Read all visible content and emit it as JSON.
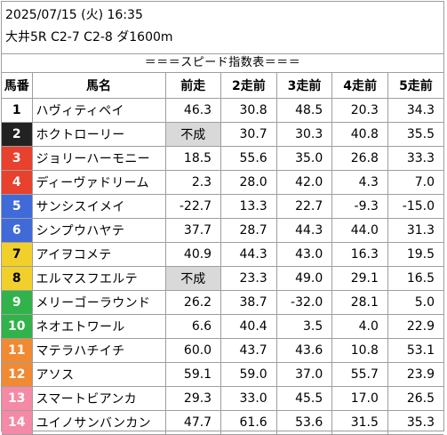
{
  "header": {
    "line1": "2025/07/15 (火) 16:35",
    "line2": "大井5R C2-7 C2-8 ダ1600m",
    "title": "＝＝＝スピード指数表＝＝＝"
  },
  "columns": {
    "num": "馬番",
    "name": "馬名",
    "r1": "前走",
    "r2": "2走前",
    "r3": "3走前",
    "r4": "4走前",
    "r5": "5走前"
  },
  "colors": {
    "frame1": "#ffffff",
    "frame2": "#222222",
    "frame3": "#e8412e",
    "frame4": "#e8412e",
    "frame5": "#3f6ad8",
    "frame6": "#3f6ad8",
    "frame7": "#f2d02b",
    "frame8": "#f2d02b",
    "frame9": "#32b24a",
    "frame10": "#32b24a",
    "frame11": "#f08a33",
    "frame12": "#f08a33",
    "frame13": "#f48aa6",
    "frame14": "#f48aa6",
    "cancelled_bg": "#d9d9d9",
    "grid": "#9e9e9e"
  },
  "rows": [
    {
      "num": "1",
      "name": "ハヴィティペイ",
      "r1": "46.3",
      "r2": "30.8",
      "r3": "48.5",
      "r4": "20.3",
      "r5": "34.3"
    },
    {
      "num": "2",
      "name": "ホクトローリー",
      "r1": "不成",
      "r2": "30.7",
      "r3": "30.3",
      "r4": "40.8",
      "r5": "35.5"
    },
    {
      "num": "3",
      "name": "ジョリーハーモニー",
      "r1": "18.5",
      "r2": "55.6",
      "r3": "35.0",
      "r4": "26.8",
      "r5": "33.3"
    },
    {
      "num": "4",
      "name": "ディーヴァドリーム",
      "r1": "2.3",
      "r2": "28.0",
      "r3": "42.0",
      "r4": "4.3",
      "r5": "7.0"
    },
    {
      "num": "5",
      "name": "サンシスイメイ",
      "r1": "-22.7",
      "r2": "13.3",
      "r3": "22.7",
      "r4": "-9.3",
      "r5": "-15.0"
    },
    {
      "num": "6",
      "name": "シンプウハヤテ",
      "r1": "37.7",
      "r2": "28.7",
      "r3": "44.3",
      "r4": "44.0",
      "r5": "31.3"
    },
    {
      "num": "7",
      "name": "アイヲコメテ",
      "r1": "40.9",
      "r2": "44.3",
      "r3": "43.0",
      "r4": "16.3",
      "r5": "19.5"
    },
    {
      "num": "8",
      "name": "エルマスフエルテ",
      "r1": "不成",
      "r2": "23.3",
      "r3": "49.0",
      "r4": "29.1",
      "r5": "16.5"
    },
    {
      "num": "9",
      "name": "メリーゴーラウンド",
      "r1": "26.2",
      "r2": "38.7",
      "r3": "-32.0",
      "r4": "28.1",
      "r5": "5.0"
    },
    {
      "num": "10",
      "name": "ネオエトワール",
      "r1": "6.6",
      "r2": "40.4",
      "r3": "3.5",
      "r4": "4.0",
      "r5": "22.9"
    },
    {
      "num": "11",
      "name": "マテラハチイチ",
      "r1": "60.0",
      "r2": "43.7",
      "r3": "43.6",
      "r4": "10.8",
      "r5": "53.1"
    },
    {
      "num": "12",
      "name": "アソス",
      "r1": "59.1",
      "r2": "59.0",
      "r3": "37.0",
      "r4": "55.7",
      "r5": "23.9"
    },
    {
      "num": "13",
      "name": "スマートビアンカ",
      "r1": "29.3",
      "r2": "33.0",
      "r3": "45.5",
      "r4": "17.0",
      "r5": "26.5"
    },
    {
      "num": "14",
      "name": "ユイノサンバンカン",
      "r1": "47.7",
      "r2": "61.6",
      "r3": "53.6",
      "r4": "31.5",
      "r5": "35.3"
    }
  ]
}
